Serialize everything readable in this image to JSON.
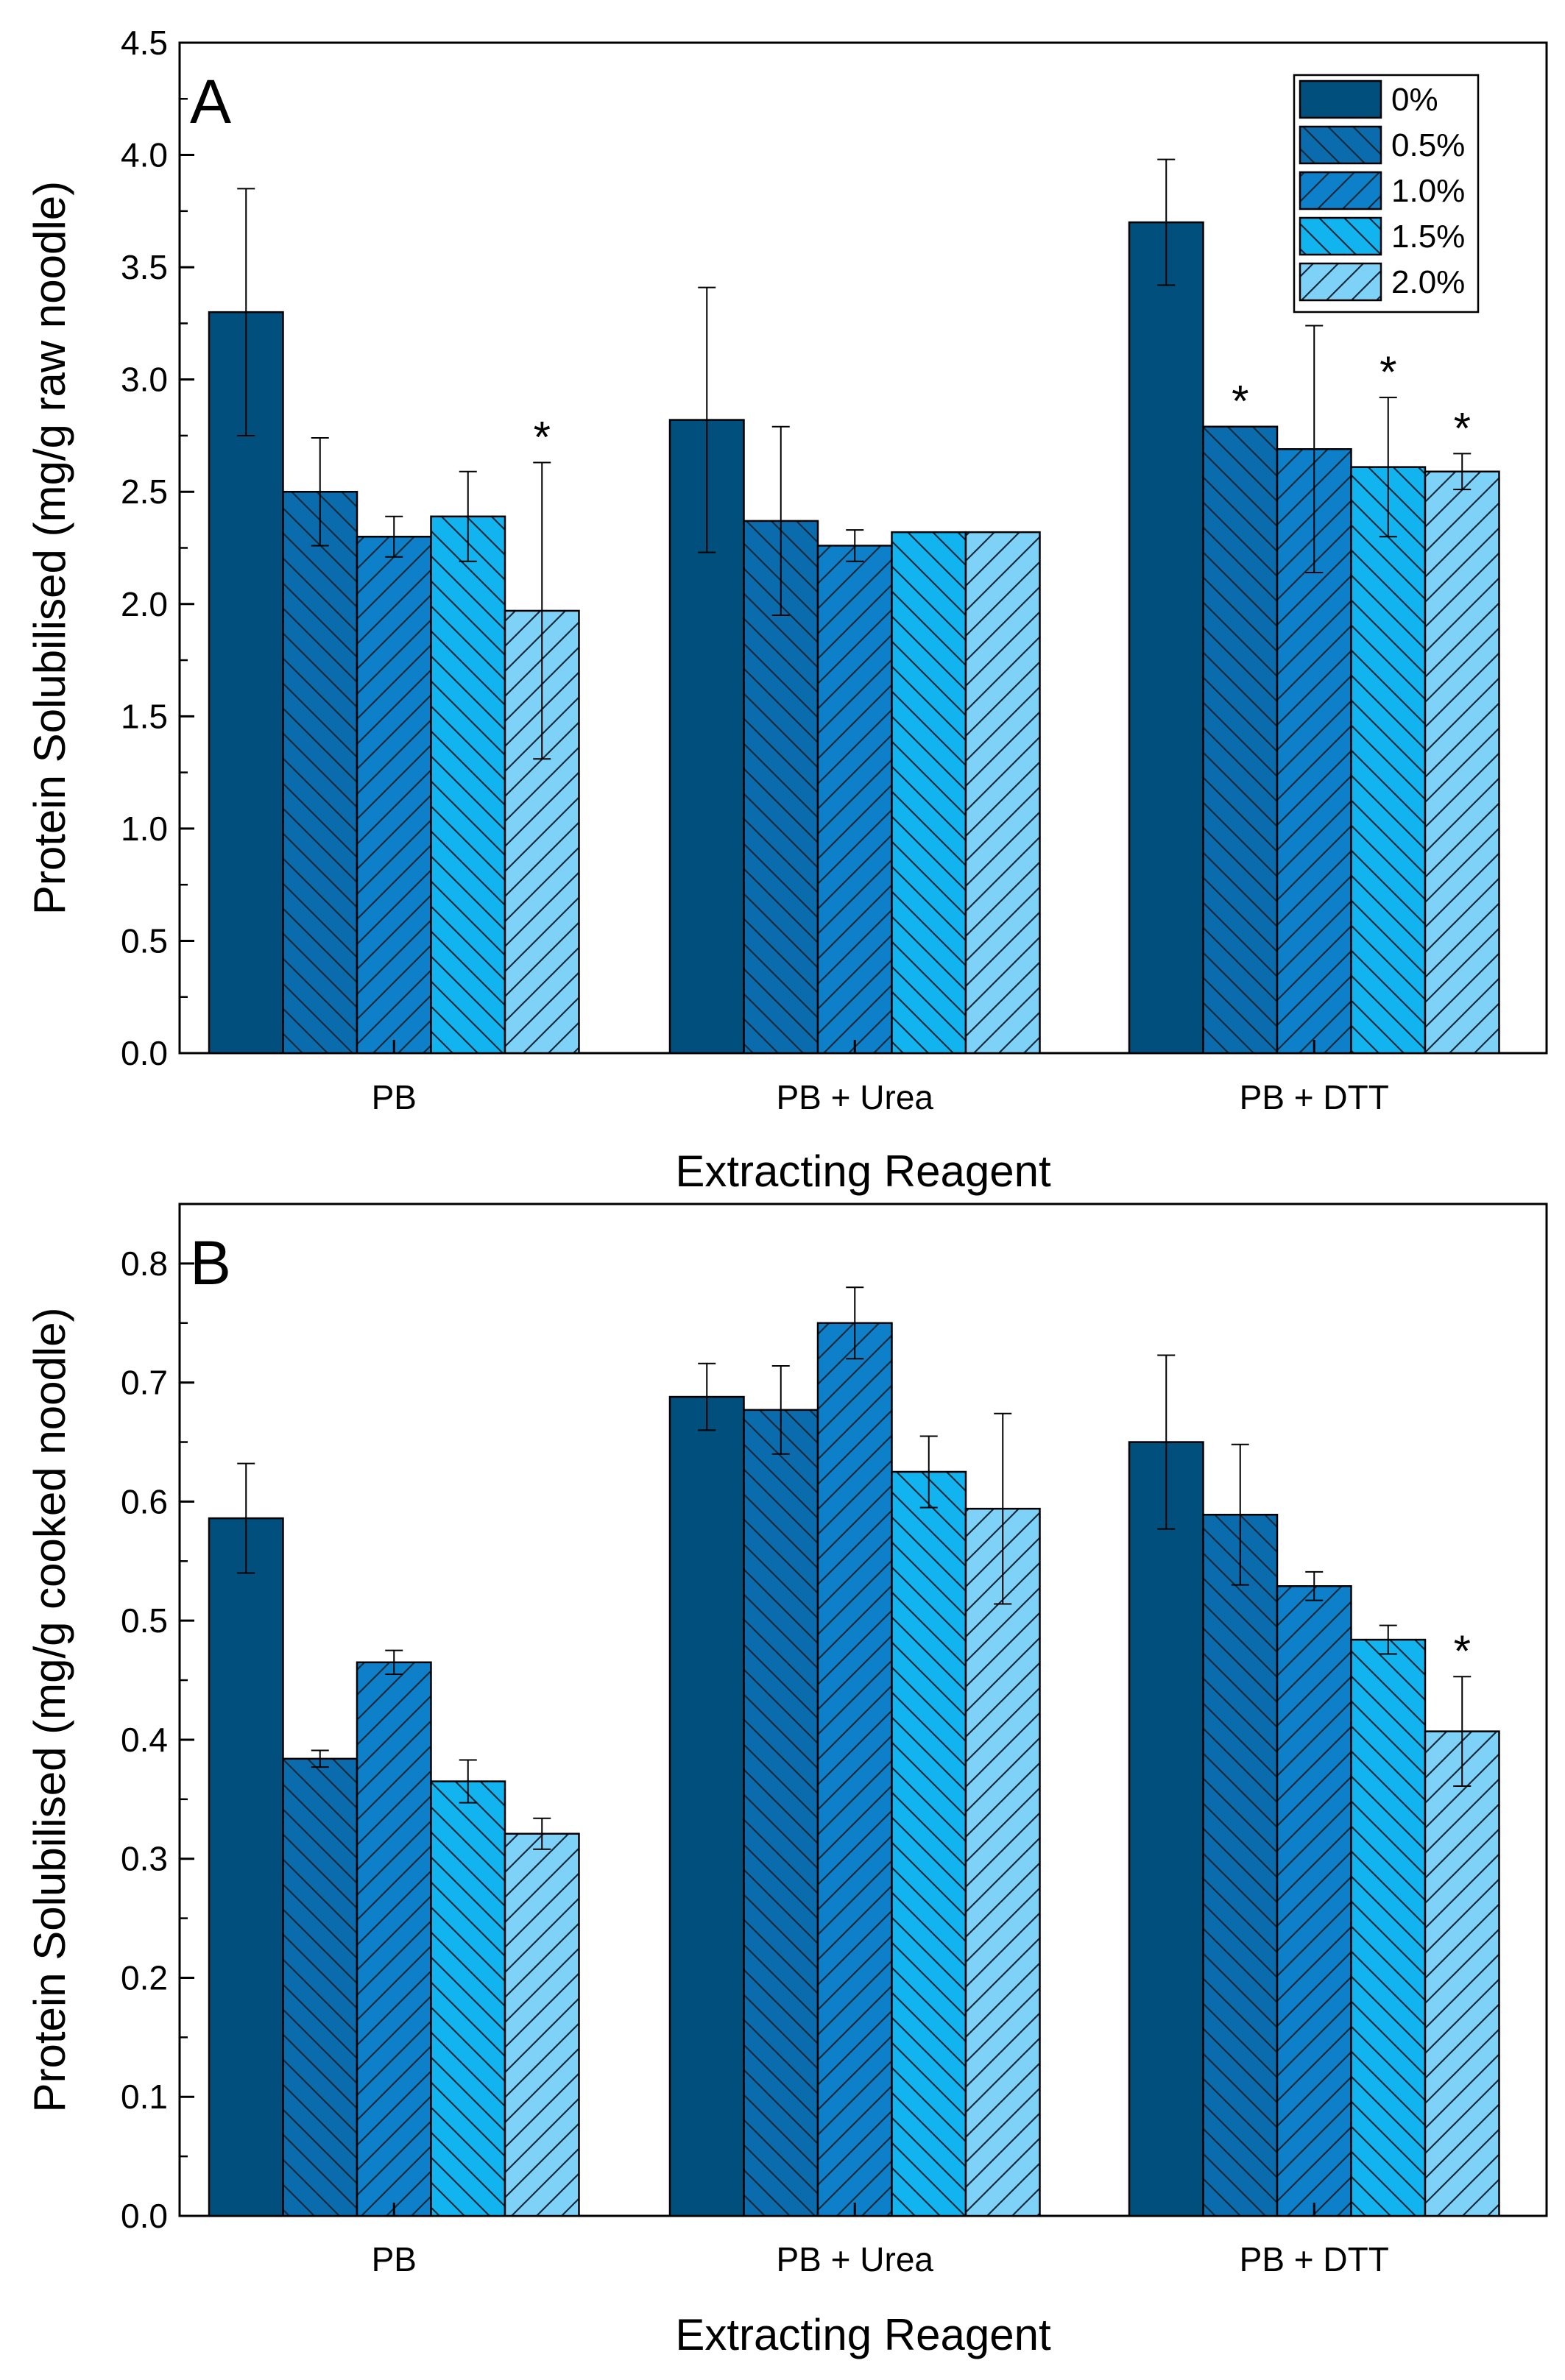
{
  "figure": {
    "series_colors": [
      "#004f7c",
      "#0a6cad",
      "#0d80c9",
      "#12b4f0",
      "#7fd2f7"
    ],
    "hatch_color": "#1a2a3a",
    "legend_icons": [
      "solid-swatch-icon",
      "back-hatch-swatch-icon",
      "forward-hatch-swatch-icon",
      "back-hatch-swatch-icon",
      "forward-hatch-swatch-icon"
    ]
  },
  "chart_data": [
    {
      "type": "bar",
      "panel": "A",
      "categories": [
        "PB",
        "PB + Urea",
        "PB + DTT"
      ],
      "xlabel": "Extracting Reagent",
      "ylabel": "Protein Solubilised (mg/g raw noodle)",
      "ylim": [
        0,
        4.5
      ],
      "yticks": [
        "0.0",
        "0.5",
        "1.0",
        "1.5",
        "2.0",
        "2.5",
        "3.0",
        "3.5",
        "4.0",
        "4.5"
      ],
      "legend_position": "top-right",
      "series": [
        {
          "name": "0%",
          "values": [
            3.3,
            2.82,
            3.7
          ],
          "errors": [
            0.55,
            0.59,
            0.28
          ],
          "significant": [
            false,
            false,
            false
          ]
        },
        {
          "name": "0.5%",
          "values": [
            2.5,
            2.37,
            2.79
          ],
          "errors": [
            0.24,
            0.42,
            0.0
          ],
          "significant": [
            false,
            false,
            true
          ]
        },
        {
          "name": "1.0%",
          "values": [
            2.3,
            2.26,
            2.69
          ],
          "errors": [
            0.09,
            0.07,
            0.55
          ],
          "significant": [
            false,
            false,
            false
          ]
        },
        {
          "name": "1.5%",
          "values": [
            2.39,
            2.32,
            2.61
          ],
          "errors": [
            0.2,
            0.0,
            0.31
          ],
          "significant": [
            false,
            false,
            true
          ]
        },
        {
          "name": "2.0%",
          "values": [
            1.97,
            2.32,
            2.59
          ],
          "errors": [
            0.66,
            0.0,
            0.08
          ],
          "significant": [
            true,
            false,
            true
          ]
        }
      ],
      "significance_marker": "*"
    },
    {
      "type": "bar",
      "panel": "B",
      "categories": [
        "PB",
        "PB + Urea",
        "PB + DTT"
      ],
      "xlabel": "Extracting Reagent",
      "ylabel": "Protein Solubilised (mg/g cooked noodle)",
      "ylim": [
        0,
        0.85
      ],
      "yticks": [
        "0.0",
        "0.1",
        "0.2",
        "0.3",
        "0.4",
        "0.5",
        "0.6",
        "0.7",
        "0.8"
      ],
      "series": [
        {
          "name": "0%",
          "values": [
            0.586,
            0.688,
            0.65
          ],
          "errors": [
            0.046,
            0.028,
            0.073
          ],
          "significant": [
            false,
            false,
            false
          ]
        },
        {
          "name": "0.5%",
          "values": [
            0.384,
            0.677,
            0.589
          ],
          "errors": [
            0.007,
            0.037,
            0.059
          ],
          "significant": [
            false,
            false,
            false
          ]
        },
        {
          "name": "1.0%",
          "values": [
            0.465,
            0.75,
            0.529
          ],
          "errors": [
            0.01,
            0.03,
            0.012
          ],
          "significant": [
            false,
            false,
            false
          ]
        },
        {
          "name": "1.5%",
          "values": [
            0.365,
            0.625,
            0.484
          ],
          "errors": [
            0.018,
            0.03,
            0.012
          ],
          "significant": [
            false,
            false,
            false
          ]
        },
        {
          "name": "2.0%",
          "values": [
            0.321,
            0.594,
            0.407
          ],
          "errors": [
            0.013,
            0.08,
            0.046
          ],
          "significant": [
            false,
            false,
            true
          ]
        }
      ],
      "significance_marker": "*"
    }
  ]
}
